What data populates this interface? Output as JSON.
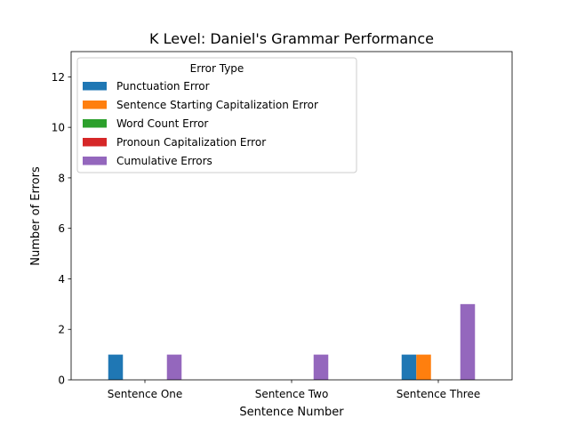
{
  "chart_data": {
    "type": "bar",
    "title": "K Level: Daniel's Grammar Performance",
    "xlabel": "Sentence Number",
    "ylabel": "Number of Errors",
    "ylim": [
      0,
      13
    ],
    "yticks": [
      0,
      2,
      4,
      6,
      8,
      10,
      12
    ],
    "grid": false,
    "categories": [
      "Sentence One",
      "Sentence Two",
      "Sentence Three"
    ],
    "legend": {
      "title": "Error Type",
      "placement": "top-left"
    },
    "series": [
      {
        "name": "Punctuation Error",
        "color": "#1f77b4",
        "values": [
          1,
          0,
          1
        ]
      },
      {
        "name": "Sentence Starting Capitalization Error",
        "color": "#ff7f0e",
        "values": [
          0,
          0,
          1
        ]
      },
      {
        "name": "Word Count Error",
        "color": "#2ca02c",
        "values": [
          0,
          0,
          0
        ]
      },
      {
        "name": "Pronoun Capitalization Error",
        "color": "#d62728",
        "values": [
          0,
          0,
          0
        ]
      },
      {
        "name": "Cumulative Errors",
        "color": "#9467bd",
        "values": [
          1,
          1,
          3
        ]
      }
    ]
  }
}
